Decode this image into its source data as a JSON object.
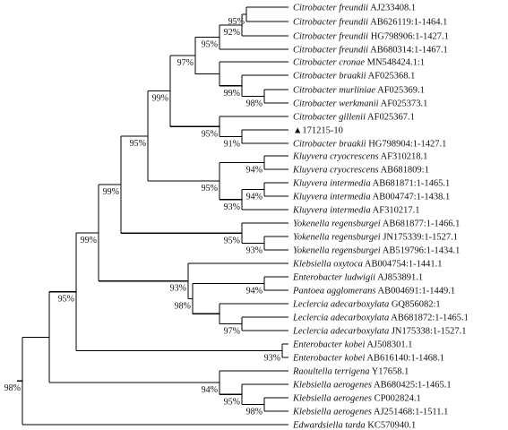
{
  "tree": {
    "leaves": [
      {
        "id": "L0",
        "species": "Citrobacter freundii",
        "accession": "AJ233408.1"
      },
      {
        "id": "L1",
        "species": "Citrobacter freundii",
        "accession": "AB626119:1-1464.1"
      },
      {
        "id": "L2",
        "species": "Citrobacter freundii",
        "accession": "HG798906:1-1427.1"
      },
      {
        "id": "L3",
        "species": "Citrobacter freundii",
        "accession": "AB680314:1-1467.1"
      },
      {
        "id": "L4",
        "species": "Citrobacter cronae",
        "accession": "MN548424.1:1"
      },
      {
        "id": "L5",
        "species": "Citrobacter braakii",
        "accession": "AF025368.1"
      },
      {
        "id": "L6",
        "species": "Citrobacter murliniae",
        "accession": "AF025369.1"
      },
      {
        "id": "L7",
        "species": "Citrobacter werkmanii",
        "accession": "AF025373.1"
      },
      {
        "id": "L8",
        "species": "Citrobacter gillenii",
        "accession": "AF025367.1"
      },
      {
        "id": "L9",
        "species": "",
        "accession": "▲171215-10"
      },
      {
        "id": "L10",
        "species": "Citrobacter braakii",
        "accession": "HG798904:1-1427.1"
      },
      {
        "id": "L11",
        "species": "Kluyvera cryocrescens",
        "accession": "AF310218.1"
      },
      {
        "id": "L12",
        "species": "Kluyvera cryocrescens",
        "accession": "AB681809:1"
      },
      {
        "id": "L13",
        "species": "Kluyvera intermedia",
        "accession": "AB681871:1-1465.1"
      },
      {
        "id": "L14",
        "species": "Kluyvera intermedia",
        "accession": "AB004747:1-1438.1"
      },
      {
        "id": "L15",
        "species": "Kluyvera intermedia",
        "accession": "AF310217.1"
      },
      {
        "id": "L16",
        "species": "Yokenella regensburgei",
        "accession": "AB681877:1-1466.1"
      },
      {
        "id": "L17",
        "species": "Yokenella regensburgei",
        "accession": "JN175339:1-1527.1"
      },
      {
        "id": "L18",
        "species": "Yokenella regensburgei",
        "accession": "AB519796:1-1434.1"
      },
      {
        "id": "L19",
        "species": "Klebsiella oxytoca",
        "accession": "AB004754:1-1441.1"
      },
      {
        "id": "L20",
        "species": "Enterobacter ludwigii",
        "accession": "AJ853891.1"
      },
      {
        "id": "L21",
        "species": "Pantoea agglomerans",
        "accession": "AB004691:1-1449.1"
      },
      {
        "id": "L22",
        "species": "Leclercia adecarboxylata",
        "accession": "GQ856082:1"
      },
      {
        "id": "L23",
        "species": "Leclercia adecarboxylata",
        "accession": "AB681872:1-1465.1"
      },
      {
        "id": "L24",
        "species": "Leclercia adecarboxylata",
        "accession": "JN175338:1-1527.1"
      },
      {
        "id": "L25",
        "species": "Enterobacter kobei",
        "accession": "AJ508301.1"
      },
      {
        "id": "L26",
        "species": "Enterobacter kobei",
        "accession": "AB616140:1-1468.1"
      },
      {
        "id": "L27",
        "species": "Raoultella terrigena",
        "accession": "Y17658.1"
      },
      {
        "id": "L28",
        "species": "Klebsiella aerogenes",
        "accession": "AB680425:1-1465.1"
      },
      {
        "id": "L29",
        "species": "Klebsiella aerogenes",
        "accession": "CP002824.1"
      },
      {
        "id": "L30",
        "species": "Klebsiella aerogenes",
        "accession": "AJ251468:1-1511.1"
      },
      {
        "id": "L31",
        "species": "Edwardsiella tarda",
        "accession": "KC570940.1"
      }
    ],
    "bootstrap": [
      {
        "id": "B_ff",
        "label": "95%"
      },
      {
        "id": "B_f",
        "label": "92%"
      },
      {
        "id": "B_fc",
        "label": "95%"
      },
      {
        "id": "B_cit",
        "label": "97%"
      },
      {
        "id": "B_mw",
        "label": "98%"
      },
      {
        "id": "B_b",
        "label": "99%"
      },
      {
        "id": "B_g",
        "label": "95%"
      },
      {
        "id": "B_gl",
        "label": "91%"
      },
      {
        "id": "B_citall",
        "label": "99%"
      },
      {
        "id": "B_kc",
        "label": "94%"
      },
      {
        "id": "B_kiab",
        "label": "94%"
      },
      {
        "id": "B_ki",
        "label": "93%"
      },
      {
        "id": "B_k",
        "label": "95%"
      },
      {
        "id": "B_cit_k",
        "label": "95%"
      },
      {
        "id": "B_yr",
        "label": "93%"
      },
      {
        "id": "B_y",
        "label": "95%"
      },
      {
        "id": "B_ckY",
        "label": "99%"
      },
      {
        "id": "B_ep",
        "label": "94%"
      },
      {
        "id": "B_l2",
        "label": "97%"
      },
      {
        "id": "B_epl",
        "label": "98%"
      },
      {
        "id": "B_kE",
        "label": "93%"
      },
      {
        "id": "B_ckyE",
        "label": "99%"
      },
      {
        "id": "B_ekob",
        "label": "93%"
      },
      {
        "id": "B_main",
        "label": "95%"
      },
      {
        "id": "B_ka2",
        "label": "98%"
      },
      {
        "id": "B_ka3",
        "label": "95%"
      },
      {
        "id": "B_ka",
        "label": "94%"
      },
      {
        "id": "B_root",
        "label": "98%"
      }
    ]
  }
}
